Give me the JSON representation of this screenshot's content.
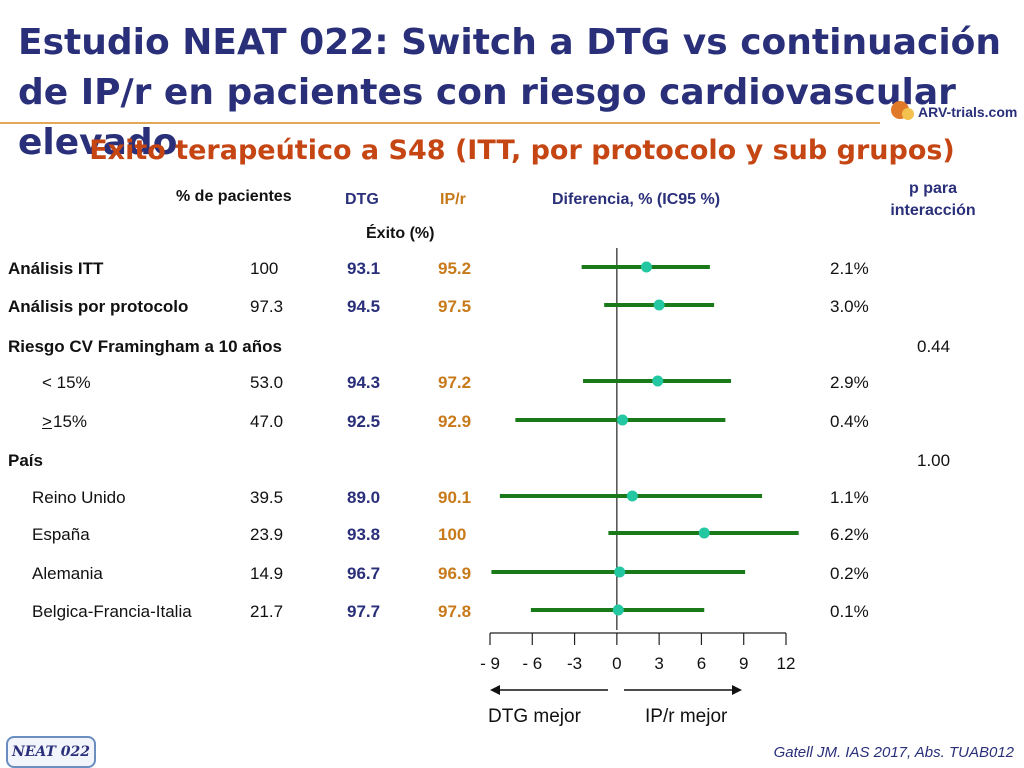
{
  "title": "Estudio NEAT 022: Switch a DTG vs continuación de IP/r en pacientes con riesgo cardiovascular elevado",
  "logo_text": "ARV-trials.com",
  "subtitle": "Exito terapeútico a S48 (ITT, por protocolo y sub grupos)",
  "headers": {
    "pct": "% de pacientes",
    "dtg": "DTG",
    "ipr": "IP/r",
    "exito": "Éxito (%)",
    "diff": "Diferencia, % (IC95 %)",
    "p": "p para interacción"
  },
  "rows": [
    {
      "label": "Análisis ITT",
      "pct": "100",
      "dtg": "93.1",
      "ipr": "95.2",
      "diff": "2.1%"
    },
    {
      "label": "Análisis por protocolo",
      "pct": "97.3",
      "dtg": "94.5",
      "ipr": "97.5",
      "diff": "3.0%"
    },
    {
      "label": "Riesgo CV Framingham a 10 años",
      "p": "0.44"
    },
    {
      "label": "< 15%",
      "pct": "53.0",
      "dtg": "94.3",
      "ipr": "97.2",
      "diff": "2.9%"
    },
    {
      "label_prefix": ">",
      "label": " 15%",
      "pct": "47.0",
      "dtg": "92.5",
      "ipr": "92.9",
      "diff": "0.4%"
    },
    {
      "label": "País",
      "p": "1.00"
    },
    {
      "label": "Reino Unido",
      "pct": "39.5",
      "dtg": "89.0",
      "ipr": "90.1",
      "diff": "1.1%"
    },
    {
      "label": "España",
      "pct": "23.9",
      "dtg": "93.8",
      "ipr": "100",
      "diff": "6.2%"
    },
    {
      "label": "Alemania",
      "pct": "14.9",
      "dtg": "96.7",
      "ipr": "96.9",
      "diff": "0.2%"
    },
    {
      "label": "Belgica-Francia-Italia",
      "pct": "21.7",
      "dtg": "97.7",
      "ipr": "97.8",
      "diff": "0.1%"
    }
  ],
  "arrows": {
    "left": "DTG mejor",
    "right": "IP/r mejor"
  },
  "badge": "NEAT 022",
  "citation": "Gatell JM. IAS 2017, Abs. TUAB012",
  "colors": {
    "title": "#2a2f7a",
    "subtitle": "#c54513",
    "ipr": "#c87a1a",
    "ci_line": "#1a7a1a",
    "point": "#23c7a2"
  },
  "chart_data": {
    "type": "forest",
    "xlim": [
      -9,
      12
    ],
    "ticks": [
      -9,
      -6,
      -3,
      0,
      3,
      6,
      9,
      12
    ],
    "tick_labels": [
      "- 9",
      "- 6",
      "-3",
      "0",
      "3",
      "6",
      "9",
      "12"
    ],
    "xlabel": "",
    "series": [
      {
        "name": "Análisis ITT",
        "estimate": 2.1,
        "ci": [
          -2.5,
          6.6
        ]
      },
      {
        "name": "Análisis por protocolo",
        "estimate": 3.0,
        "ci": [
          -0.9,
          6.9
        ]
      },
      {
        "name": "< 15%",
        "estimate": 2.9,
        "ci": [
          -2.4,
          8.1
        ]
      },
      {
        "name": "> 15%",
        "estimate": 0.4,
        "ci": [
          -7.2,
          7.7
        ]
      },
      {
        "name": "Reino Unido",
        "estimate": 1.1,
        "ci": [
          -8.3,
          10.3
        ]
      },
      {
        "name": "España",
        "estimate": 6.2,
        "ci": [
          -0.6,
          12.9
        ]
      },
      {
        "name": "Alemania",
        "estimate": 0.2,
        "ci": [
          -8.9,
          9.1
        ]
      },
      {
        "name": "Belgica-Francia-Italia",
        "estimate": 0.1,
        "ci": [
          -6.1,
          6.2
        ]
      }
    ]
  }
}
